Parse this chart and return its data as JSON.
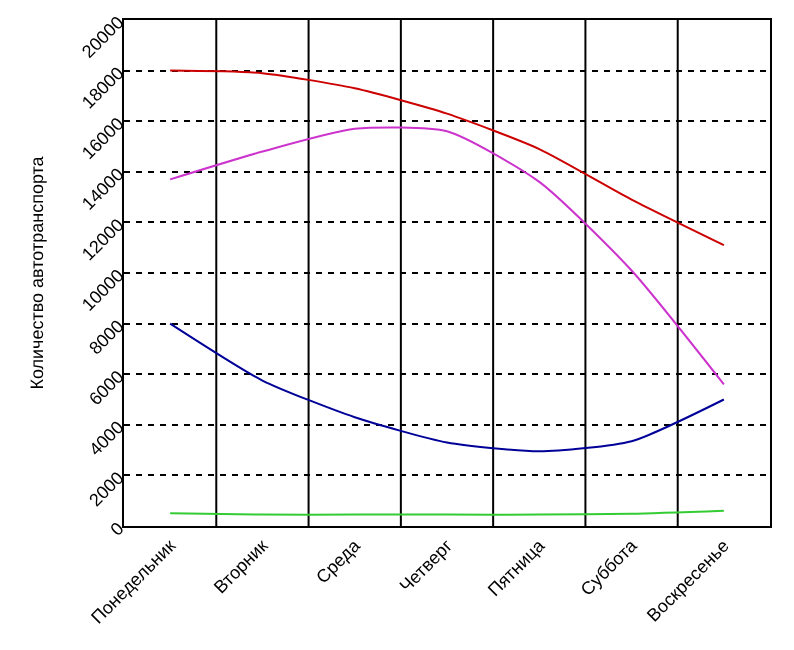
{
  "chart_data": {
    "type": "line",
    "ylabel": "Количество автотранспорта",
    "categories": [
      "Понедельник",
      "Вторник",
      "Среда",
      "Четверг",
      "Пятница",
      "Суббота",
      "Воскресенье"
    ],
    "series": [
      {
        "color": "#cc0000",
        "values": [
          18000,
          17900,
          17300,
          16300,
          14900,
          12900,
          11100
        ]
      },
      {
        "color": "#cc33cc",
        "values": [
          13700,
          14800,
          15700,
          15600,
          13600,
          10100,
          5600
        ]
      },
      {
        "color": "#000099",
        "values": [
          8000,
          5750,
          4300,
          3300,
          2950,
          3350,
          5000
        ]
      },
      {
        "color": "#33cc33",
        "values": [
          500,
          450,
          450,
          450,
          450,
          480,
          600
        ]
      }
    ],
    "ylim": [
      0,
      20000
    ],
    "yticks": [
      0,
      2000,
      4000,
      6000,
      8000,
      10000,
      12000,
      14000,
      16000,
      18000,
      20000
    ],
    "grid": true,
    "marker": "none",
    "line_style": "solid"
  }
}
